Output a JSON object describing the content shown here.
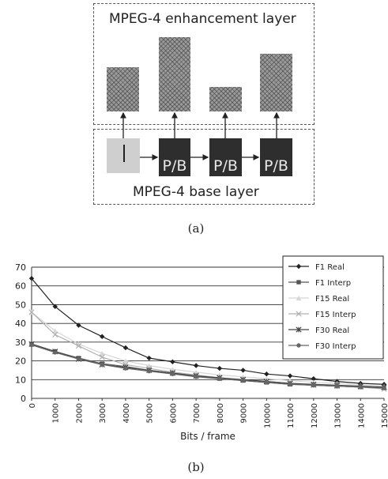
{
  "diagram": {
    "enhancement_layer_label": "MPEG-4 enhancement layer",
    "base_layer_label": "MPEG-4 base layer",
    "frames": [
      {
        "label": "I"
      },
      {
        "label": "P/B"
      },
      {
        "label": "P/B"
      },
      {
        "label": "P/B"
      }
    ],
    "caption": "(a)"
  },
  "chart_data": {
    "type": "line",
    "xlabel": "Bits / frame",
    "ylabel": "",
    "title": "",
    "x": [
      0,
      1000,
      2000,
      3000,
      4000,
      5000,
      6000,
      7000,
      8000,
      9000,
      10000,
      11000,
      12000,
      13000,
      14000,
      15000
    ],
    "ylim": [
      0,
      70
    ],
    "yticks": [
      0,
      10,
      20,
      30,
      40,
      50,
      60,
      70
    ],
    "xticks": [
      0,
      1000,
      2000,
      3000,
      4000,
      5000,
      6000,
      7000,
      8000,
      9000,
      10000,
      11000,
      12000,
      13000,
      14000,
      15000
    ],
    "grid": "horizontal",
    "legend_position": "right",
    "series": [
      {
        "name": "F1 Real",
        "color": "#222222",
        "marker": "diamond",
        "values": [
          64,
          49,
          39,
          33,
          27,
          21.5,
          19.5,
          17.5,
          16,
          15,
          13,
          12,
          10.5,
          9,
          8,
          7.5
        ]
      },
      {
        "name": "F1 Interp",
        "color": "#555555",
        "marker": "square",
        "values": [
          29,
          25,
          21.5,
          18.5,
          17,
          15,
          13.5,
          12,
          10.5,
          9.5,
          8.5,
          7.5,
          7,
          6.5,
          6,
          5.5
        ]
      },
      {
        "name": "F15 Real",
        "color": "#d6d6d6",
        "marker": "triangle",
        "values": [
          46,
          36,
          29,
          24,
          20,
          17.5,
          15.5,
          14,
          12.5,
          11.5,
          10.5,
          9.5,
          8.5,
          8,
          7,
          6.5
        ]
      },
      {
        "name": "F15 Interp",
        "color": "#b0b0b0",
        "marker": "x",
        "values": [
          46,
          34,
          28,
          22,
          18,
          16,
          14,
          12.5,
          11,
          10,
          9,
          8,
          7,
          6.5,
          6,
          5
        ]
      },
      {
        "name": "F30 Real",
        "color": "#444444",
        "marker": "star",
        "values": [
          29,
          25,
          21,
          18,
          16.5,
          15,
          13.5,
          12,
          11,
          10,
          9,
          8,
          7.5,
          7,
          6.5,
          6
        ]
      },
      {
        "name": "F30 Interp",
        "color": "#666666",
        "marker": "circle",
        "values": [
          28.5,
          24.5,
          21,
          18,
          16,
          14.5,
          13,
          11.5,
          10.5,
          9.5,
          8.5,
          7.5,
          7,
          6.5,
          6,
          5.5
        ]
      }
    ],
    "caption": "(b)"
  }
}
